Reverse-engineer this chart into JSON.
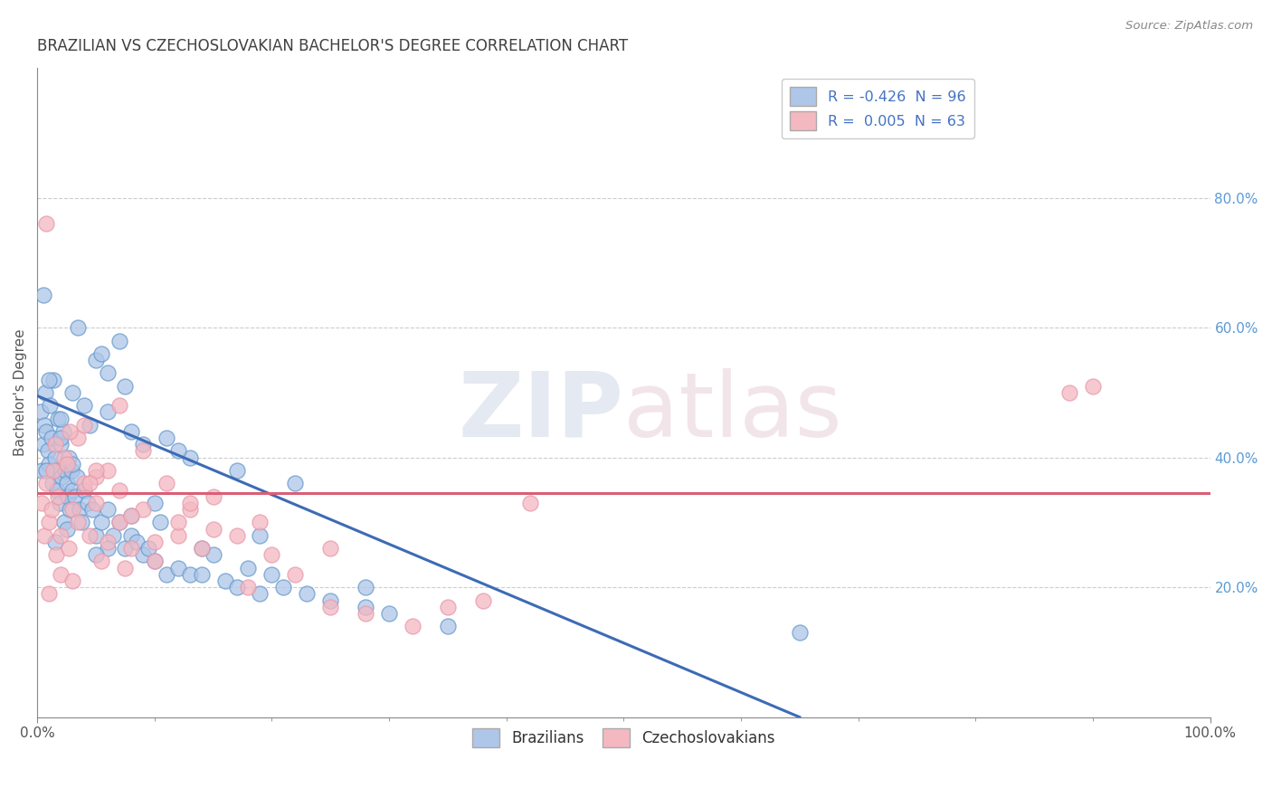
{
  "title": "BRAZILIAN VS CZECHOSLOVAKIAN BACHELOR'S DEGREE CORRELATION CHART",
  "source_text": "Source: ZipAtlas.com",
  "ylabel": "Bachelor's Degree",
  "watermark_zip": "ZIP",
  "watermark_atlas": "atlas",
  "xlim": [
    0.0,
    100.0
  ],
  "ylim": [
    0.0,
    100.0
  ],
  "x_tick_vals": [
    0,
    100
  ],
  "x_tick_labels": [
    "0.0%",
    "100.0%"
  ],
  "y_tick_vals": [
    20,
    40,
    60,
    80
  ],
  "y_tick_labels": [
    "20.0%",
    "40.0%",
    "60.0%",
    "80.0%"
  ],
  "blue_color": "#aec6e8",
  "pink_color": "#f4b8c1",
  "blue_edge_color": "#6699cc",
  "pink_edge_color": "#e899aa",
  "blue_line_color": "#3d6bb5",
  "pink_line_color": "#d95f76",
  "title_fontsize": 12,
  "title_color": "#404040",
  "background_color": "#ffffff",
  "grid_color": "#cccccc",
  "legend_label_blue": "R = -0.426  N = 96",
  "legend_label_pink": "R =  0.005  N = 63",
  "brazil_trend_x0": 0.0,
  "brazil_trend_y0": 49.5,
  "brazil_trend_x1": 65.0,
  "brazil_trend_y1": 0.0,
  "czech_trend_x0": 0.0,
  "czech_trend_y0": 34.5,
  "czech_trend_x1": 100.0,
  "czech_trend_y1": 34.5,
  "brazil_points_x": [
    0.3,
    0.4,
    0.5,
    0.6,
    0.7,
    0.8,
    0.9,
    1.0,
    1.1,
    1.2,
    1.3,
    1.4,
    1.5,
    1.6,
    1.7,
    1.8,
    1.9,
    2.0,
    2.1,
    2.2,
    2.3,
    2.4,
    2.5,
    2.6,
    2.7,
    2.8,
    2.9,
    3.0,
    3.2,
    3.4,
    3.6,
    3.8,
    4.0,
    4.3,
    4.7,
    5.0,
    5.5,
    6.0,
    6.5,
    7.0,
    7.5,
    8.0,
    8.5,
    9.0,
    9.5,
    10.0,
    10.5,
    11.0,
    12.0,
    13.0,
    14.0,
    15.0,
    16.0,
    17.0,
    18.0,
    19.0,
    20.0,
    21.0,
    23.0,
    25.0,
    28.0,
    30.0,
    35.0,
    65.0,
    5.0,
    7.0,
    3.0,
    2.0,
    0.5,
    1.0,
    4.0,
    6.0,
    8.0,
    11.0,
    13.0,
    17.0,
    22.0,
    3.5,
    5.5,
    9.0,
    6.0,
    4.5,
    7.5,
    12.0,
    2.5,
    1.5,
    0.8,
    10.0,
    19.0,
    28.0,
    14.0,
    8.0,
    3.0,
    2.0,
    6.0,
    5.0
  ],
  "brazil_points_y": [
    47.0,
    38.0,
    42.0,
    45.0,
    50.0,
    44.0,
    41.0,
    39.0,
    48.0,
    43.0,
    36.0,
    52.0,
    40.0,
    38.0,
    35.0,
    46.0,
    33.0,
    42.0,
    37.0,
    44.0,
    30.0,
    38.0,
    36.0,
    34.0,
    40.0,
    32.0,
    38.0,
    35.0,
    34.0,
    37.0,
    32.0,
    30.0,
    35.0,
    33.0,
    32.0,
    28.0,
    30.0,
    32.0,
    28.0,
    30.0,
    26.0,
    28.0,
    27.0,
    25.0,
    26.0,
    24.0,
    30.0,
    22.0,
    23.0,
    22.0,
    22.0,
    25.0,
    21.0,
    20.0,
    23.0,
    19.0,
    22.0,
    20.0,
    19.0,
    18.0,
    17.0,
    16.0,
    14.0,
    13.0,
    55.0,
    58.0,
    50.0,
    46.0,
    65.0,
    52.0,
    48.0,
    53.0,
    44.0,
    43.0,
    40.0,
    38.0,
    36.0,
    60.0,
    56.0,
    42.0,
    47.0,
    45.0,
    51.0,
    41.0,
    29.0,
    27.0,
    38.0,
    33.0,
    28.0,
    20.0,
    26.0,
    31.0,
    39.0,
    43.0,
    26.0,
    25.0
  ],
  "czech_points_x": [
    0.4,
    0.6,
    0.8,
    1.0,
    1.2,
    1.4,
    1.6,
    1.8,
    2.0,
    2.3,
    2.7,
    3.0,
    3.5,
    4.0,
    4.5,
    5.0,
    5.5,
    6.0,
    7.0,
    8.0,
    9.0,
    10.0,
    11.0,
    12.0,
    13.0,
    14.0,
    15.0,
    17.0,
    19.0,
    22.0,
    25.0,
    28.0,
    35.0,
    38.0,
    42.0,
    88.0,
    90.0,
    1.5,
    2.5,
    3.5,
    5.0,
    7.0,
    9.0,
    12.0,
    4.0,
    6.0,
    8.0,
    2.0,
    1.0,
    15.0,
    20.0,
    3.0,
    5.0,
    7.5,
    10.0,
    13.0,
    18.0,
    25.0,
    32.0,
    0.8,
    2.8,
    4.5,
    7.0
  ],
  "czech_points_y": [
    33.0,
    28.0,
    36.0,
    30.0,
    32.0,
    38.0,
    25.0,
    34.0,
    28.0,
    40.0,
    26.0,
    32.0,
    30.0,
    36.0,
    28.0,
    33.0,
    24.0,
    38.0,
    30.0,
    26.0,
    32.0,
    24.0,
    36.0,
    28.0,
    32.0,
    26.0,
    34.0,
    28.0,
    30.0,
    22.0,
    26.0,
    16.0,
    17.0,
    18.0,
    33.0,
    50.0,
    51.0,
    42.0,
    39.0,
    43.0,
    37.0,
    35.0,
    41.0,
    30.0,
    45.0,
    27.0,
    31.0,
    22.0,
    19.0,
    29.0,
    25.0,
    21.0,
    38.0,
    23.0,
    27.0,
    33.0,
    20.0,
    17.0,
    14.0,
    76.0,
    44.0,
    36.0,
    48.0
  ]
}
